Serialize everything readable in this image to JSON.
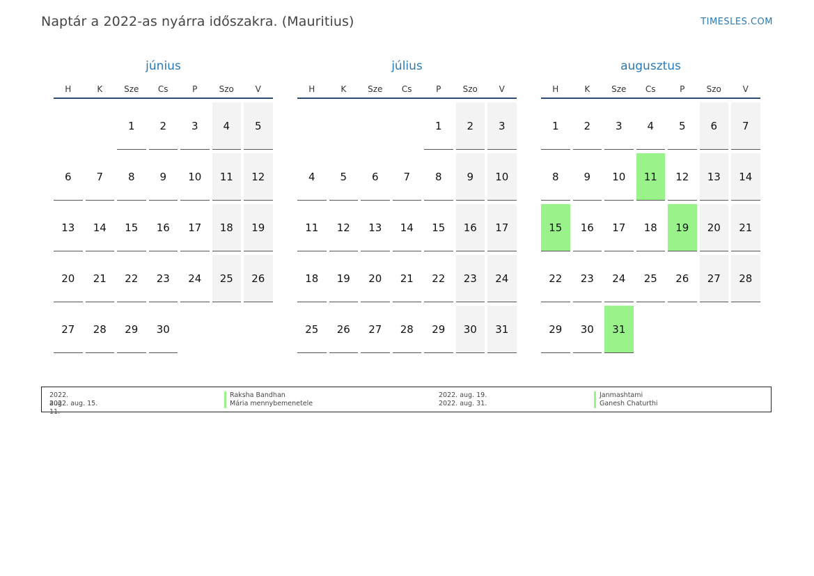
{
  "header": {
    "title": "Naptár a 2022-as nyárra időszakra. (Mauritius)",
    "brand": "TIMESLES.COM"
  },
  "weekdays": [
    "H",
    "K",
    "Sze",
    "Cs",
    "P",
    "Szo",
    "V"
  ],
  "colors": {
    "accent": "#2a7ab8",
    "holiday": "#99f28a",
    "weekend": "#f3f3f3",
    "header_rule": "#2c4d70"
  },
  "months": [
    {
      "name": "június",
      "offset": 2,
      "days": 30,
      "holidays": []
    },
    {
      "name": "július",
      "offset": 4,
      "days": 31,
      "holidays": []
    },
    {
      "name": "augusztus",
      "offset": 0,
      "days": 31,
      "holidays": [
        11,
        15,
        19,
        31
      ]
    }
  ],
  "legend": [
    {
      "date": "2022. aug. 11.",
      "name": "Raksha Bandhan"
    },
    {
      "date": "2022. aug. 15.",
      "name": "Mária mennybemenetele"
    },
    {
      "date": "2022. aug. 19.",
      "name": "Janmashtami"
    },
    {
      "date": "2022. aug. 31.",
      "name": "Ganesh Chaturthi"
    }
  ]
}
